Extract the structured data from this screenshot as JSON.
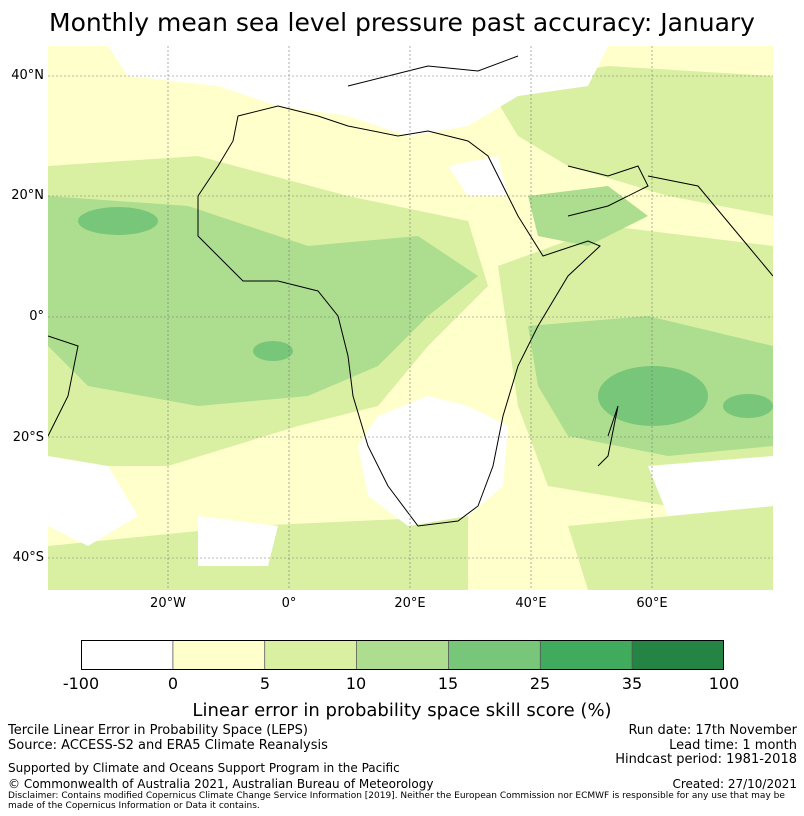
{
  "title": "Monthly mean sea level pressure past accuracy: January",
  "map": {
    "lat_ticks": [
      "40°N",
      "20°N",
      "0°",
      "20°S",
      "40°S"
    ],
    "lon_ticks": [
      "20°W",
      "0°",
      "20°E",
      "40°E",
      "60°E"
    ]
  },
  "colorbar": {
    "bounds": [
      "-100",
      "0",
      "5",
      "10",
      "15",
      "25",
      "35",
      "100"
    ],
    "colors": [
      "#ffffff",
      "#ffffcc",
      "#d9f0a3",
      "#addd8e",
      "#78c679",
      "#41ab5d",
      "#238443"
    ],
    "label": "Linear error in probability space skill score (%)"
  },
  "footer": {
    "line1": "Tercile Linear Error in Probability Space (LEPS)",
    "line2": "Source: ACCESS-S2 and ERA5 Climate Reanalysis",
    "support": "Supported by Climate and Oceans Support Program in the Pacific",
    "copyright": "© Commonwealth of Australia 2021, Australian Bureau of Meteorology",
    "run_date": "Run date: 17th November",
    "lead_time": "Lead time: 1 month",
    "hindcast": "Hindcast period: 1981-2018",
    "created": "Created: 27/10/2021",
    "disclaimer": "Disclaimer: Contains modified Copernicus Climate Change Service Information [2019]. Neither the European Commission nor ECMWF is responsible for any use that may be made of the Copernicus Information or Data it contains."
  }
}
